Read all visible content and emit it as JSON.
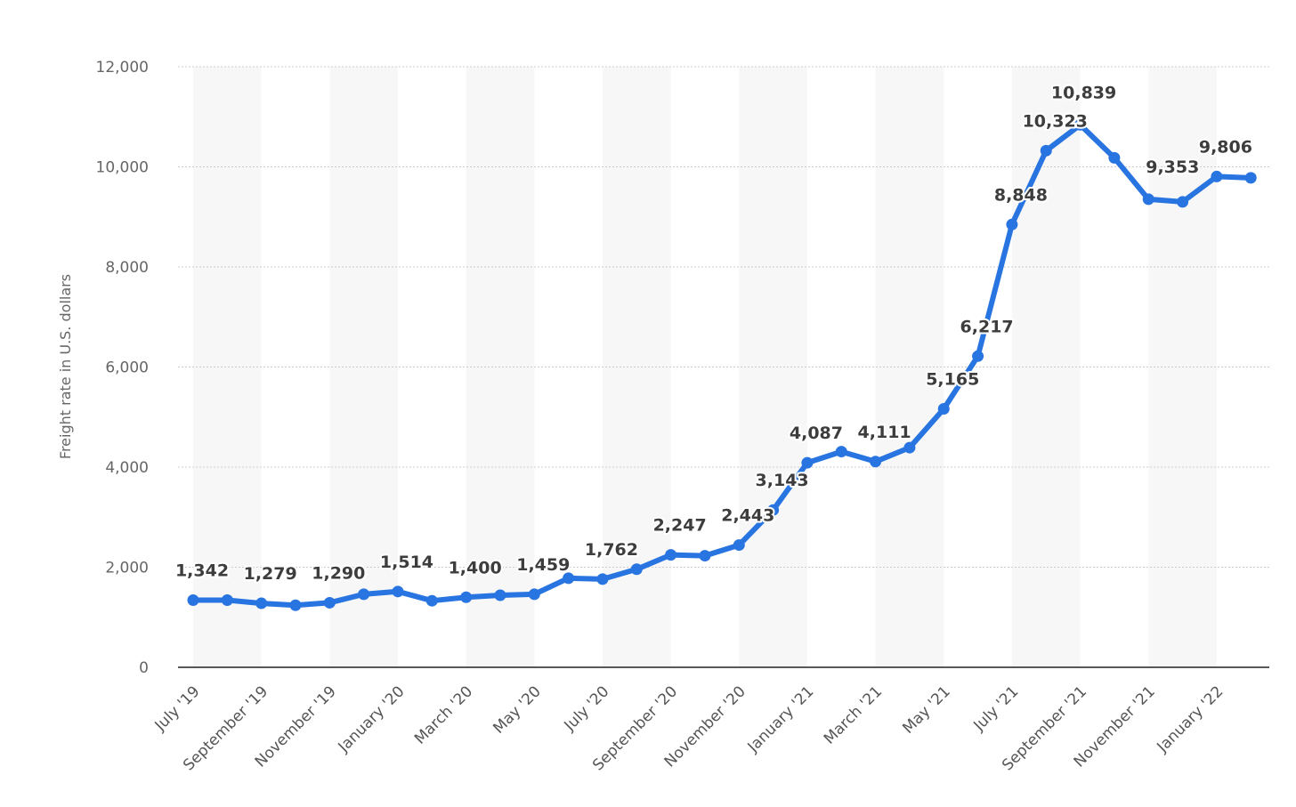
{
  "chart_data": {
    "type": "line",
    "ylabel": "Freight rate in U.S. dollars",
    "xlabel": "",
    "ylim": [
      0,
      12000
    ],
    "yticks": [
      0,
      2000,
      4000,
      6000,
      8000,
      10000,
      12000
    ],
    "ytick_labels": [
      "0",
      "2,000",
      "4,000",
      "6,000",
      "8,000",
      "10,000",
      "12,000"
    ],
    "grid": true,
    "colors": {
      "line": "#2874e0",
      "band": "#f7f7f7",
      "grid": "#cccccc",
      "axis": "#222222"
    },
    "x": [
      "Jul '19",
      "Aug '19",
      "Sep '19",
      "Oct '19",
      "Nov '19",
      "Dec '19",
      "Jan '20",
      "Feb '20",
      "Mar '20",
      "Apr '20",
      "May '20",
      "Jun '20",
      "Jul '20",
      "Aug '20",
      "Sep '20",
      "Oct '20",
      "Nov '20",
      "Dec '20",
      "Jan '21",
      "Feb '21",
      "Mar '21",
      "Apr '21",
      "May '21",
      "Jun '21",
      "Jul '21",
      "Aug '21",
      "Sep '21",
      "Oct '21",
      "Nov '21",
      "Dec '21",
      "Jan '22",
      "Feb '22"
    ],
    "x_tick_labels": [
      "July '19",
      "September '19",
      "November '19",
      "January '20",
      "March '20",
      "May '20",
      "July '20",
      "September '20",
      "November '20",
      "January '21",
      "March '21",
      "May '21",
      "July '21",
      "September '21",
      "November '21",
      "January '22"
    ],
    "series": [
      {
        "values": [
          1342,
          1342,
          1279,
          1240,
          1290,
          1460,
          1514,
          1330,
          1400,
          1440,
          1459,
          1780,
          1762,
          1960,
          2247,
          2230,
          2443,
          3143,
          4087,
          4310,
          4111,
          4390,
          5165,
          6217,
          8848,
          10323,
          10839,
          10180,
          9353,
          9300,
          9806,
          9780
        ]
      }
    ],
    "data_labels": [
      {
        "index": 0,
        "text": "1,342"
      },
      {
        "index": 2,
        "text": "1,279"
      },
      {
        "index": 4,
        "text": "1,290"
      },
      {
        "index": 6,
        "text": "1,514"
      },
      {
        "index": 8,
        "text": "1,400"
      },
      {
        "index": 10,
        "text": "1,459"
      },
      {
        "index": 12,
        "text": "1,762"
      },
      {
        "index": 14,
        "text": "2,247"
      },
      {
        "index": 16,
        "text": "2,443"
      },
      {
        "index": 17,
        "text": "3,143"
      },
      {
        "index": 18,
        "text": "4,087"
      },
      {
        "index": 20,
        "text": "4,111"
      },
      {
        "index": 22,
        "text": "5,165"
      },
      {
        "index": 23,
        "text": "6,217"
      },
      {
        "index": 24,
        "text": "8,848"
      },
      {
        "index": 25,
        "text": "10,323"
      },
      {
        "index": 26,
        "text": "10,839"
      },
      {
        "index": 28,
        "text": "9,353"
      },
      {
        "index": 30,
        "text": "9,806"
      }
    ]
  }
}
